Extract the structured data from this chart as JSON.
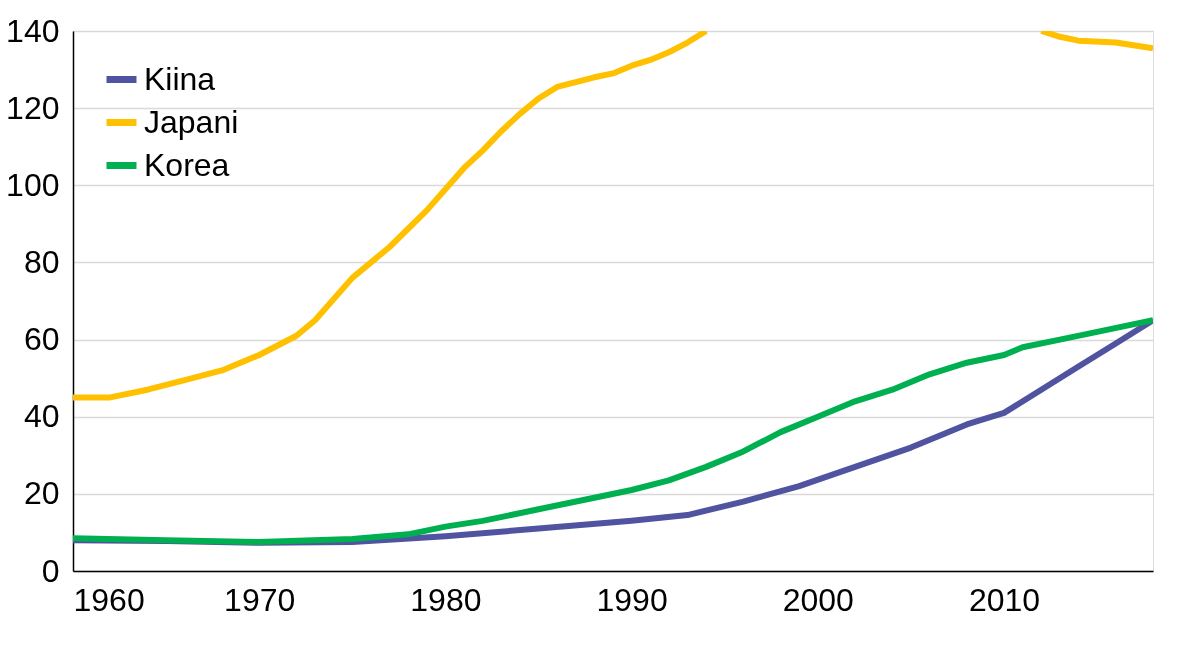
{
  "chart_data": {
    "type": "line",
    "xlim": [
      1960,
      2018
    ],
    "xticks": [
      1960,
      1970,
      1980,
      1990,
      2000,
      2010
    ],
    "ylim": [
      0,
      140
    ],
    "yticks": [
      0,
      20,
      40,
      60,
      80,
      100,
      120,
      140
    ],
    "grid": "y",
    "legend": "top left",
    "line_style": "solid",
    "marker": "none",
    "series": [
      {
        "name": "Kiina",
        "color": "#4f53a0",
        "x": [
          1960,
          1965,
          1970,
          1975,
          1980,
          1985,
          1990,
          1993,
          1996,
          1999,
          2002,
          2005,
          2008,
          2010,
          2012,
          2014,
          2016,
          2018
        ],
        "values": [
          8,
          7.8,
          7.3,
          7.5,
          9,
          11,
          13,
          14.5,
          18,
          22,
          27,
          32,
          38,
          41,
          47,
          53,
          59,
          65
        ]
      },
      {
        "name": "Japani",
        "color": "#ffc000",
        "x": [
          1960,
          1962,
          1964,
          1966,
          1968,
          1970,
          1972,
          1973,
          1975,
          1977,
          1979,
          1981,
          1982,
          1983,
          1984,
          1985,
          1986,
          1988,
          1989,
          1990,
          1991,
          1992,
          1993,
          1994,
          2000,
          2012,
          2013,
          2014,
          2016,
          2018
        ],
        "values": [
          45,
          45,
          47,
          49.5,
          52,
          56,
          61,
          65,
          76,
          84,
          93.5,
          104.5,
          109,
          114,
          118.5,
          122.5,
          125.5,
          128,
          129,
          131,
          132.5,
          134.5,
          137,
          140,
          null,
          140,
          138.5,
          137.5,
          137,
          135.5
        ]
      },
      {
        "name": "Korea",
        "color": "#00b050",
        "x": [
          1960,
          1965,
          1970,
          1975,
          1978,
          1980,
          1982,
          1985,
          1988,
          1990,
          1992,
          1994,
          1996,
          1998,
          2000,
          2002,
          2004,
          2006,
          2008,
          2010,
          2011,
          2013,
          2015,
          2018
        ],
        "values": [
          8.5,
          8,
          7.5,
          8.3,
          9.5,
          11.5,
          13,
          16,
          19,
          21,
          23.5,
          27,
          31,
          36,
          40,
          44,
          47,
          51,
          54,
          56,
          58,
          60,
          62,
          65
        ]
      }
    ]
  }
}
